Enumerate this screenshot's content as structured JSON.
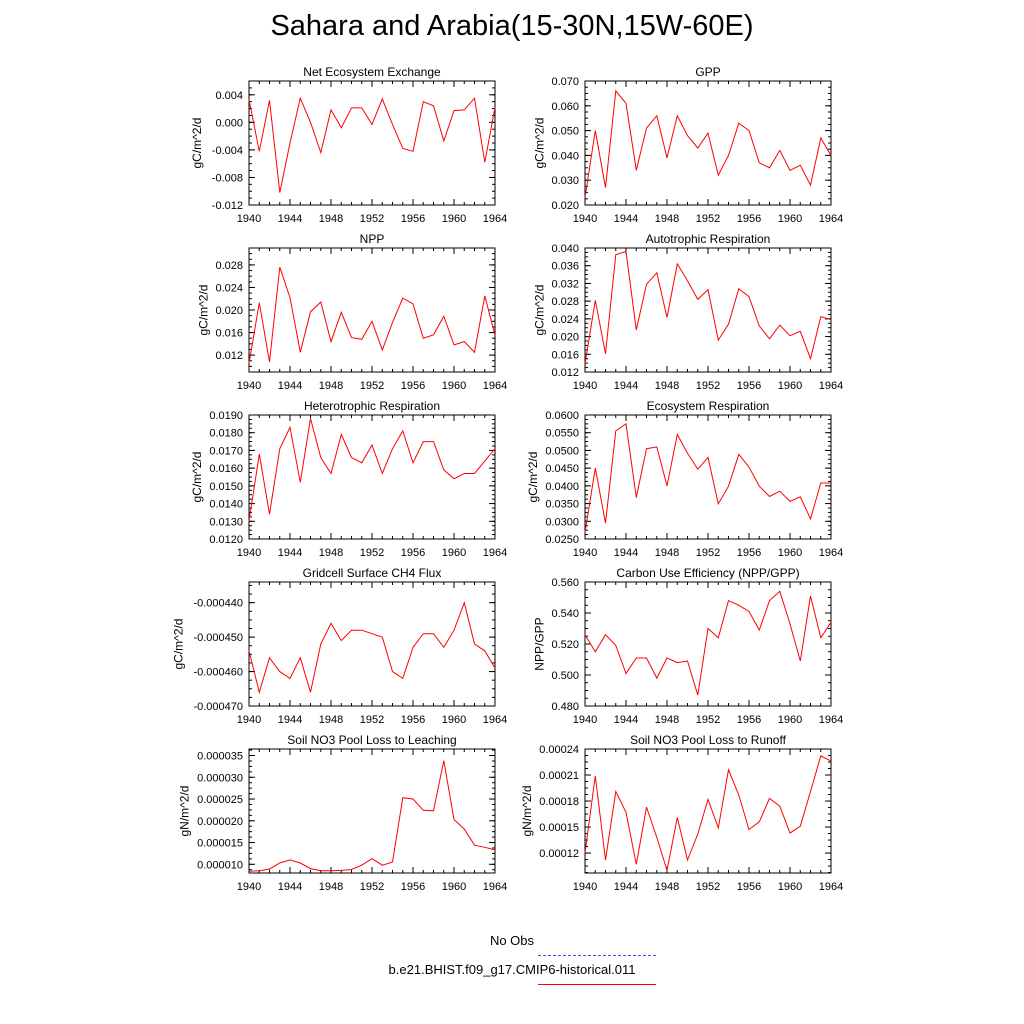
{
  "title": "Sahara and Arabia(15-30N,15W-60E)",
  "colors": {
    "model": "#ff0000",
    "obs": "#4a50d8"
  },
  "legend": [
    {
      "label": "No Obs",
      "style": "dashed",
      "color": "#4a50d8"
    },
    {
      "label": "b.e21.BHIST.f09_g17.CMIP6-historical.011",
      "style": "solid",
      "color": "#ff0000"
    }
  ],
  "chart_data": [
    {
      "type": "line",
      "title": "Net Ecosystem Exchange",
      "ylabel": "gC/m^2/d",
      "xlim": [
        1940,
        1964
      ],
      "ylim": [
        -0.012,
        0.006
      ],
      "xticks": [
        "1940",
        "1944",
        "1948",
        "1952",
        "1956",
        "1960",
        "1964"
      ],
      "yticks": [
        "-0.012",
        "-0.008",
        "-0.004",
        "0.000",
        "0.004"
      ],
      "x": [
        1940,
        1941,
        1942,
        1943,
        1944,
        1945,
        1946,
        1947,
        1948,
        1949,
        1950,
        1951,
        1952,
        1953,
        1954,
        1955,
        1956,
        1957,
        1958,
        1959,
        1960,
        1961,
        1962,
        1963,
        1964
      ],
      "values": [
        0.0033,
        -0.0042,
        0.0032,
        -0.0102,
        -0.003,
        0.0035,
        0.0,
        -0.0044,
        0.0018,
        -0.0008,
        0.0021,
        0.0021,
        -0.0003,
        0.0034,
        -0.0003,
        -0.0038,
        -0.0042,
        0.003,
        0.0024,
        -0.0027,
        0.0017,
        0.0018,
        0.0035,
        -0.0058,
        0.0022
      ]
    },
    {
      "type": "line",
      "title": "GPP",
      "ylabel": "gC/m^2/d",
      "xlim": [
        1940,
        1964
      ],
      "ylim": [
        0.02,
        0.07
      ],
      "xticks": [
        "1940",
        "1944",
        "1948",
        "1952",
        "1956",
        "1960",
        "1964"
      ],
      "yticks": [
        "0.020",
        "0.030",
        "0.040",
        "0.050",
        "0.060",
        "0.070"
      ],
      "x": [
        1940,
        1941,
        1942,
        1943,
        1944,
        1945,
        1946,
        1947,
        1948,
        1949,
        1950,
        1951,
        1952,
        1953,
        1954,
        1955,
        1956,
        1957,
        1958,
        1959,
        1960,
        1961,
        1962,
        1963,
        1964
      ],
      "values": [
        0.023,
        0.05,
        0.027,
        0.066,
        0.061,
        0.034,
        0.051,
        0.056,
        0.039,
        0.056,
        0.048,
        0.043,
        0.049,
        0.032,
        0.04,
        0.053,
        0.05,
        0.037,
        0.035,
        0.042,
        0.034,
        0.036,
        0.028,
        0.047,
        0.04
      ]
    },
    {
      "type": "line",
      "title": "NPP",
      "ylabel": "gC/m^2/d",
      "xlim": [
        1940,
        1964
      ],
      "ylim": [
        0.009,
        0.031
      ],
      "xticks": [
        "1940",
        "1944",
        "1948",
        "1952",
        "1956",
        "1960",
        "1964"
      ],
      "yticks": [
        "0.012",
        "0.016",
        "0.020",
        "0.024",
        "0.028"
      ],
      "x": [
        1940,
        1941,
        1942,
        1943,
        1944,
        1945,
        1946,
        1947,
        1948,
        1949,
        1950,
        1951,
        1952,
        1953,
        1954,
        1955,
        1956,
        1957,
        1958,
        1959,
        1960,
        1961,
        1962,
        1963,
        1964
      ],
      "values": [
        0.0105,
        0.0213,
        0.0108,
        0.0276,
        0.0222,
        0.0125,
        0.0197,
        0.0214,
        0.0144,
        0.0196,
        0.0151,
        0.0148,
        0.018,
        0.0129,
        0.0178,
        0.0221,
        0.0211,
        0.015,
        0.0156,
        0.0189,
        0.0138,
        0.0144,
        0.0125,
        0.0225,
        0.0155
      ]
    },
    {
      "type": "line",
      "title": "Autotrophic Respiration",
      "ylabel": "gC/m^2/d",
      "xlim": [
        1940,
        1964
      ],
      "ylim": [
        0.012,
        0.04
      ],
      "xticks": [
        "1940",
        "1944",
        "1948",
        "1952",
        "1956",
        "1960",
        "1964"
      ],
      "yticks": [
        "0.012",
        "0.016",
        "0.020",
        "0.024",
        "0.028",
        "0.032",
        "0.036",
        "0.040"
      ],
      "x": [
        1940,
        1941,
        1942,
        1943,
        1944,
        1945,
        1946,
        1947,
        1948,
        1949,
        1950,
        1951,
        1952,
        1953,
        1954,
        1955,
        1956,
        1957,
        1958,
        1959,
        1960,
        1961,
        1962,
        1963,
        1964
      ],
      "values": [
        0.0138,
        0.0282,
        0.0161,
        0.0385,
        0.0392,
        0.0215,
        0.0318,
        0.0344,
        0.0243,
        0.0364,
        0.0326,
        0.0284,
        0.0306,
        0.0192,
        0.0228,
        0.0308,
        0.029,
        0.0224,
        0.0195,
        0.0226,
        0.0202,
        0.0212,
        0.015,
        0.0245,
        0.0238
      ]
    },
    {
      "type": "line",
      "title": "Heterotrophic Respiration",
      "ylabel": "gC/m^2/d",
      "xlim": [
        1940,
        1964
      ],
      "ylim": [
        0.012,
        0.019
      ],
      "xticks": [
        "1940",
        "1944",
        "1948",
        "1952",
        "1956",
        "1960",
        "1964"
      ],
      "yticks": [
        "0.0120",
        "0.0130",
        "0.0140",
        "0.0150",
        "0.0160",
        "0.0170",
        "0.0180",
        "0.0190"
      ],
      "x": [
        1940,
        1941,
        1942,
        1943,
        1944,
        1945,
        1946,
        1947,
        1948,
        1949,
        1950,
        1951,
        1952,
        1953,
        1954,
        1955,
        1956,
        1957,
        1958,
        1959,
        1960,
        1961,
        1962,
        1963,
        1964
      ],
      "values": [
        0.013,
        0.0168,
        0.0134,
        0.0171,
        0.0183,
        0.0152,
        0.0188,
        0.0166,
        0.0157,
        0.0179,
        0.0166,
        0.0163,
        0.0173,
        0.0157,
        0.0171,
        0.0181,
        0.0163,
        0.0175,
        0.0175,
        0.0159,
        0.0154,
        0.0157,
        0.0157,
        0.0164,
        0.0171
      ]
    },
    {
      "type": "line",
      "title": "Ecosystem Respiration",
      "ylabel": "gC/m^2/d",
      "xlim": [
        1940,
        1964
      ],
      "ylim": [
        0.025,
        0.06
      ],
      "xticks": [
        "1940",
        "1944",
        "1948",
        "1952",
        "1956",
        "1960",
        "1964"
      ],
      "yticks": [
        "0.0250",
        "0.0300",
        "0.0350",
        "0.0400",
        "0.0450",
        "0.0500",
        "0.0550",
        "0.0600"
      ],
      "x": [
        1940,
        1941,
        1942,
        1943,
        1944,
        1945,
        1946,
        1947,
        1948,
        1949,
        1950,
        1951,
        1952,
        1953,
        1954,
        1955,
        1956,
        1957,
        1958,
        1959,
        1960,
        1961,
        1962,
        1963,
        1964
      ],
      "values": [
        0.0268,
        0.045,
        0.0295,
        0.0555,
        0.0575,
        0.0367,
        0.0505,
        0.051,
        0.04,
        0.0545,
        0.0492,
        0.0447,
        0.048,
        0.0349,
        0.0399,
        0.0489,
        0.0453,
        0.0399,
        0.037,
        0.0385,
        0.0356,
        0.0369,
        0.0307,
        0.0408,
        0.0408
      ]
    },
    {
      "type": "line",
      "title": "Gridcell Surface CH4 Flux",
      "ylabel": "gC/m^2/d",
      "xlim": [
        1940,
        1964
      ],
      "ylim": [
        -0.00047,
        -0.000434
      ],
      "xticks": [
        "1940",
        "1944",
        "1948",
        "1952",
        "1956",
        "1960",
        "1964"
      ],
      "yticks": [
        "-0.000470",
        "-0.000460",
        "-0.000450",
        "-0.000440"
      ],
      "x": [
        1940,
        1941,
        1942,
        1943,
        1944,
        1945,
        1946,
        1947,
        1948,
        1949,
        1950,
        1951,
        1952,
        1953,
        1954,
        1955,
        1956,
        1957,
        1958,
        1959,
        1960,
        1961,
        1962,
        1963,
        1964
      ],
      "values": [
        -0.000454,
        -0.000466,
        -0.000456,
        -0.00046,
        -0.000462,
        -0.000456,
        -0.000466,
        -0.000452,
        -0.000446,
        -0.000451,
        -0.000448,
        -0.000448,
        -0.000449,
        -0.00045,
        -0.00046,
        -0.000462,
        -0.000453,
        -0.000449,
        -0.000449,
        -0.000453,
        -0.000448,
        -0.00044,
        -0.000452,
        -0.000454,
        -0.000459
      ]
    },
    {
      "type": "line",
      "title": "Carbon Use Efficiency (NPP/GPP)",
      "ylabel": "NPP/GPP",
      "xlim": [
        1940,
        1964
      ],
      "ylim": [
        0.48,
        0.56
      ],
      "xticks": [
        "1940",
        "1944",
        "1948",
        "1952",
        "1956",
        "1960",
        "1964"
      ],
      "yticks": [
        "0.480",
        "0.500",
        "0.520",
        "0.540",
        "0.560"
      ],
      "x": [
        1940,
        1941,
        1942,
        1943,
        1944,
        1945,
        1946,
        1947,
        1948,
        1949,
        1950,
        1951,
        1952,
        1953,
        1954,
        1955,
        1956,
        1957,
        1958,
        1959,
        1960,
        1961,
        1962,
        1963,
        1964
      ],
      "values": [
        0.526,
        0.515,
        0.526,
        0.519,
        0.501,
        0.511,
        0.511,
        0.498,
        0.511,
        0.508,
        0.509,
        0.487,
        0.53,
        0.524,
        0.548,
        0.545,
        0.541,
        0.529,
        0.548,
        0.554,
        0.533,
        0.509,
        0.551,
        0.524,
        0.534
      ]
    },
    {
      "type": "line",
      "title": "Soil NO3 Pool Loss to Leaching",
      "ylabel": "gN/m^2/d",
      "xlim": [
        1940,
        1964
      ],
      "ylim": [
        8e-06,
        3.65e-05
      ],
      "xticks": [
        "1940",
        "1944",
        "1948",
        "1952",
        "1956",
        "1960",
        "1964"
      ],
      "yticks": [
        "0.000010",
        "0.000015",
        "0.000020",
        "0.000025",
        "0.000030",
        "0.000035"
      ],
      "x": [
        1940,
        1941,
        1942,
        1943,
        1944,
        1945,
        1946,
        1947,
        1948,
        1949,
        1950,
        1951,
        1952,
        1953,
        1954,
        1955,
        1956,
        1957,
        1958,
        1959,
        1960,
        1961,
        1962,
        1963,
        1964
      ],
      "values": [
        8.4e-06,
        8.5e-06,
        8.9e-06,
        1.03e-05,
        1.1e-05,
        1.03e-05,
        9e-06,
        8.5e-06,
        8.5e-06,
        8.6e-06,
        8.8e-06,
        9.8e-06,
        1.13e-05,
        9.8e-06,
        1.05e-05,
        2.53e-05,
        2.5e-05,
        2.24e-05,
        2.23e-05,
        3.38e-05,
        2.03e-05,
        1.81e-05,
        1.44e-05,
        1.39e-05,
        1.33e-05
      ]
    },
    {
      "type": "line",
      "title": "Soil NO3 Pool Loss to Runoff",
      "ylabel": "gN/m^2/d",
      "xlim": [
        1940,
        1964
      ],
      "ylim": [
        9.7e-05,
        0.00024
      ],
      "xticks": [
        "1940",
        "1944",
        "1948",
        "1952",
        "1956",
        "1960",
        "1964"
      ],
      "yticks": [
        "0.00012",
        "0.00015",
        "0.00018",
        "0.00021",
        "0.00024"
      ],
      "x": [
        1940,
        1941,
        1942,
        1943,
        1944,
        1945,
        1946,
        1947,
        1948,
        1949,
        1950,
        1951,
        1952,
        1953,
        1954,
        1955,
        1956,
        1957,
        1958,
        1959,
        1960,
        1961,
        1962,
        1963,
        1964
      ],
      "values": [
        0.00012,
        0.000209,
        0.000112,
        0.000191,
        0.000167,
        0.000107,
        0.000173,
        0.000138,
        0.0001,
        0.000161,
        0.000112,
        0.000142,
        0.000182,
        0.000149,
        0.000216,
        0.000187,
        0.000147,
        0.000156,
        0.000183,
        0.000174,
        0.000143,
        0.000151,
        0.000191,
        0.000232,
        0.000226
      ]
    }
  ]
}
